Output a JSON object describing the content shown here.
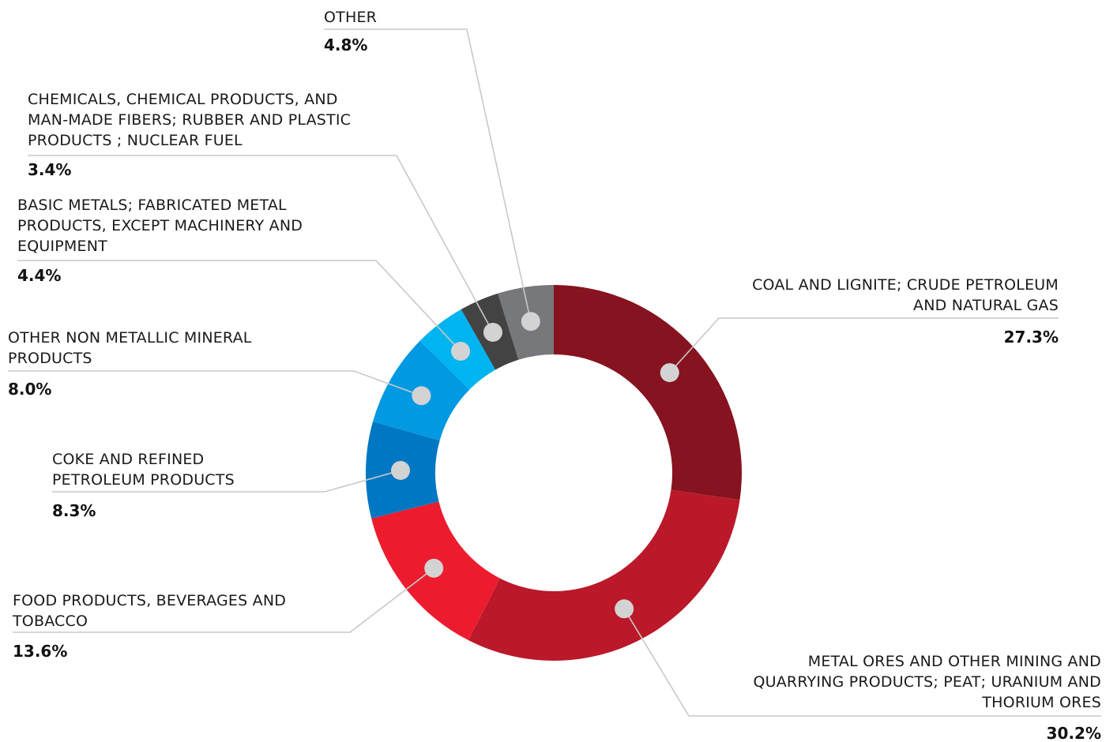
{
  "chart_data": {
    "type": "pie",
    "variant": "donut",
    "slices": [
      {
        "label_lines": [
          "COAL AND LIGNITE; CRUDE PETROLEUM",
          "AND NATURAL GAS"
        ],
        "value": 27.3,
        "value_label": "27.3%",
        "color": "#86131f"
      },
      {
        "label_lines": [
          "METAL ORES AND OTHER MINING AND",
          "QUARRYING PRODUCTS; PEAT; URANIUM AND",
          "THORIUM ORES"
        ],
        "value": 30.2,
        "value_label": "30.2%",
        "color": "#bb1829"
      },
      {
        "label_lines": [
          "FOOD PRODUCTS, BEVERAGES AND",
          "TOBACCO"
        ],
        "value": 13.6,
        "value_label": "13.6%",
        "color": "#ec1c2e"
      },
      {
        "label_lines": [
          "COKE AND REFINED",
          "PETROLEUM PRODUCTS"
        ],
        "value": 8.3,
        "value_label": "8.3%",
        "color": "#0077c2"
      },
      {
        "label_lines": [
          "OTHER NON METALLIC MINERAL",
          "PRODUCTS"
        ],
        "value": 8.0,
        "value_label": "8.0%",
        "color": "#0199e2"
      },
      {
        "label_lines": [
          "BASIC METALS; FABRICATED METAL",
          "PRODUCTS, EXCEPT MACHINERY AND",
          "EQUIPMENT"
        ],
        "value": 4.4,
        "value_label": "4.4%",
        "color": "#00b4ef"
      },
      {
        "label_lines": [
          "CHEMICALS, CHEMICAL PRODUCTS, AND",
          "MAN-MADE FIBERS; RUBBER AND PLASTIC",
          "PRODUCTS ; NUCLEAR FUEL"
        ],
        "value": 3.4,
        "value_label": "3.4%",
        "color": "#434344"
      },
      {
        "label_lines": [
          "OTHER"
        ],
        "value": 4.8,
        "value_label": "4.8%",
        "color": "#77787b"
      }
    ]
  }
}
